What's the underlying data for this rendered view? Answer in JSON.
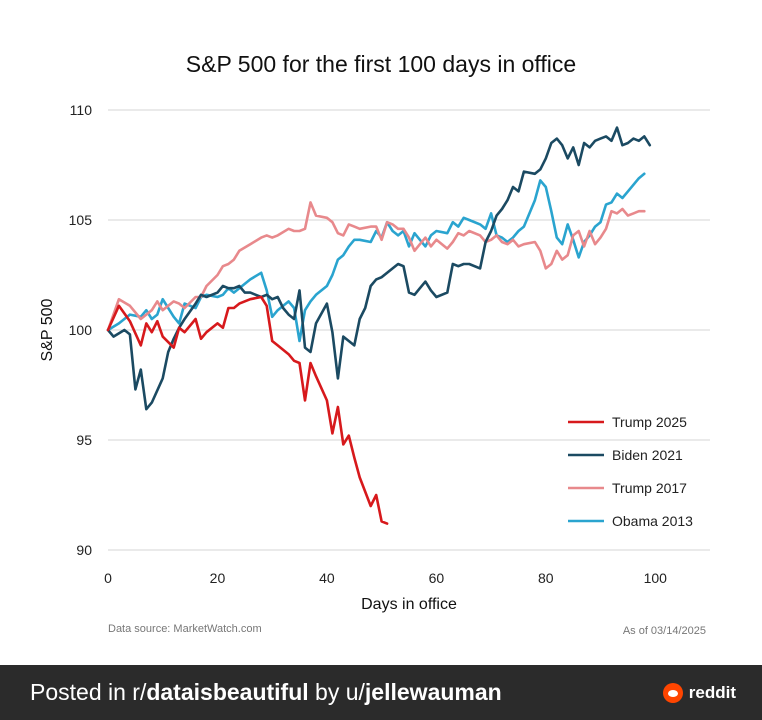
{
  "chart_data": {
    "type": "line",
    "title": "S&P 500 for the first 100 days in office",
    "xlabel": "Days in office",
    "ylabel": "S&P 500",
    "xlim": [
      0,
      110
    ],
    "ylim": [
      90,
      110
    ],
    "xticks": [
      0,
      20,
      40,
      60,
      80,
      100
    ],
    "yticks": [
      90,
      95,
      100,
      105,
      110
    ],
    "grid": "horizontal",
    "legend_position": "bottom-right",
    "series": [
      {
        "name": "Trump 2025",
        "color": "#d7191c",
        "x": [
          0,
          2,
          4,
          6,
          7,
          8,
          9,
          10,
          12,
          13,
          14,
          16,
          17,
          18,
          20,
          21,
          22,
          23,
          24,
          26,
          28,
          29,
          30,
          31,
          33,
          34,
          35,
          36,
          37,
          38,
          40,
          41,
          42,
          43,
          44,
          45,
          46,
          48,
          49,
          50,
          51
        ],
        "y": [
          100,
          101.1,
          100.4,
          99.3,
          100.3,
          99.9,
          100.4,
          99.7,
          99.2,
          100.1,
          99.9,
          100.5,
          99.6,
          99.9,
          100.3,
          100.1,
          101.0,
          101.0,
          101.2,
          101.4,
          101.5,
          101.1,
          99.5,
          99.3,
          98.9,
          98.6,
          98.5,
          96.8,
          98.5,
          97.9,
          96.8,
          95.3,
          96.5,
          94.8,
          95.2,
          94.2,
          93.3,
          92.0,
          92.5,
          91.3,
          91.2
        ]
      },
      {
        "name": "Biden 2021",
        "color": "#1b4a62",
        "x": [
          0,
          1,
          3,
          4,
          5,
          6,
          7,
          8,
          10,
          11,
          12,
          13,
          14,
          16,
          17,
          18,
          20,
          21,
          22,
          23,
          24,
          25,
          26,
          28,
          29,
          30,
          31,
          32,
          33,
          34,
          35,
          36,
          37,
          38,
          40,
          41,
          42,
          43,
          45,
          46,
          47,
          48,
          49,
          50,
          52,
          53,
          54,
          55,
          56,
          57,
          58,
          59,
          60,
          62,
          63,
          64,
          65,
          66,
          68,
          69,
          70,
          71,
          72,
          73,
          74,
          75,
          76,
          78,
          79,
          80,
          81,
          82,
          83,
          84,
          85,
          86,
          87,
          88,
          89,
          90,
          91,
          92,
          93,
          94,
          95,
          96,
          97,
          98,
          99
        ],
        "y": [
          100,
          99.7,
          100.0,
          99.8,
          97.3,
          98.2,
          96.4,
          96.7,
          97.8,
          99.0,
          99.6,
          100.1,
          100.5,
          101.2,
          101.6,
          101.5,
          101.7,
          102.0,
          101.9,
          101.9,
          102.0,
          101.7,
          101.7,
          101.5,
          101.6,
          101.4,
          101.5,
          101.0,
          100.7,
          100.5,
          101.8,
          99.2,
          99.0,
          100.3,
          101.2,
          99.9,
          97.8,
          99.7,
          99.3,
          100.5,
          101.0,
          102.0,
          102.3,
          102.4,
          102.8,
          103.0,
          102.9,
          101.7,
          101.6,
          101.9,
          102.2,
          101.8,
          101.5,
          101.7,
          103.0,
          102.9,
          103.0,
          103.0,
          102.8,
          104.0,
          104.5,
          105.2,
          105.5,
          105.9,
          106.5,
          106.3,
          107.2,
          107.1,
          107.3,
          107.8,
          108.5,
          108.7,
          108.4,
          107.8,
          108.3,
          107.5,
          108.5,
          108.3,
          108.6,
          108.7,
          108.8,
          108.6,
          109.2,
          108.4,
          108.5,
          108.7,
          108.6,
          108.8,
          108.4
        ]
      },
      {
        "name": "Trump 2017",
        "color": "#e8898c",
        "x": [
          0,
          2,
          4,
          6,
          7,
          8,
          9,
          10,
          12,
          13,
          14,
          16,
          17,
          18,
          20,
          21,
          22,
          23,
          24,
          26,
          28,
          29,
          30,
          31,
          33,
          34,
          35,
          36,
          37,
          38,
          40,
          41,
          42,
          43,
          44,
          45,
          46,
          48,
          49,
          50,
          51,
          52,
          53,
          54,
          55,
          56,
          57,
          58,
          59,
          60,
          62,
          63,
          64,
          65,
          66,
          68,
          69,
          70,
          71,
          72,
          73,
          74,
          75,
          76,
          78,
          79,
          80,
          81,
          82,
          83,
          84,
          85,
          86,
          87,
          88,
          89,
          90,
          91,
          92,
          93,
          94,
          95,
          96,
          97,
          98
        ],
        "y": [
          100,
          101.4,
          101.1,
          100.5,
          100.7,
          100.9,
          101.3,
          100.9,
          101.3,
          101.2,
          101.0,
          101.5,
          101.5,
          102.0,
          102.5,
          102.9,
          103.0,
          103.2,
          103.6,
          103.9,
          104.2,
          104.3,
          104.2,
          104.3,
          104.6,
          104.5,
          104.5,
          104.6,
          105.8,
          105.2,
          105.1,
          104.9,
          104.4,
          104.3,
          104.8,
          104.7,
          104.6,
          104.7,
          104.7,
          104.1,
          104.9,
          104.8,
          104.6,
          104.6,
          104.2,
          103.6,
          103.9,
          104.2,
          103.8,
          104.1,
          103.7,
          104.0,
          104.4,
          104.3,
          104.5,
          104.3,
          104.0,
          104.1,
          104.3,
          104.0,
          103.9,
          104.1,
          103.8,
          103.9,
          104.0,
          103.6,
          102.8,
          103.0,
          103.6,
          103.2,
          103.4,
          104.3,
          104.5,
          103.8,
          104.5,
          103.9,
          104.2,
          104.6,
          105.4,
          105.3,
          105.5,
          105.2,
          105.3,
          105.4,
          105.4
        ]
      },
      {
        "name": "Obama 2013",
        "color": "#2aa4cf",
        "x": [
          0,
          2,
          4,
          6,
          7,
          8,
          9,
          10,
          12,
          13,
          14,
          16,
          17,
          18,
          20,
          21,
          22,
          23,
          24,
          26,
          28,
          29,
          30,
          31,
          33,
          34,
          35,
          36,
          37,
          38,
          40,
          41,
          42,
          43,
          44,
          45,
          46,
          48,
          49,
          50,
          51,
          52,
          53,
          54,
          55,
          56,
          57,
          58,
          59,
          60,
          62,
          63,
          64,
          65,
          66,
          68,
          69,
          70,
          71,
          72,
          73,
          74,
          75,
          76,
          78,
          79,
          80,
          81,
          82,
          83,
          84,
          85,
          86,
          87,
          88,
          89,
          90,
          91,
          92,
          93,
          94,
          95,
          96,
          97,
          98
        ],
        "y": [
          100,
          100.3,
          100.7,
          100.6,
          100.9,
          100.5,
          100.7,
          101.4,
          100.6,
          100.3,
          101.2,
          101.0,
          101.5,
          101.6,
          101.5,
          101.6,
          101.9,
          101.7,
          101.9,
          102.3,
          102.6,
          101.8,
          100.6,
          100.9,
          101.3,
          101.0,
          99.5,
          100.9,
          101.3,
          101.6,
          102.0,
          102.5,
          103.2,
          103.4,
          103.8,
          104.1,
          104.1,
          104.0,
          104.5,
          104.2,
          104.9,
          104.5,
          104.3,
          104.5,
          103.8,
          104.4,
          104.1,
          103.8,
          104.3,
          104.5,
          104.4,
          104.9,
          104.7,
          105.1,
          105.0,
          104.8,
          104.6,
          105.3,
          104.3,
          104.2,
          104.0,
          104.2,
          104.5,
          104.7,
          105.9,
          106.8,
          106.5,
          105.4,
          104.2,
          103.9,
          104.8,
          104.1,
          103.3,
          104.0,
          104.3,
          104.7,
          104.9,
          105.7,
          105.8,
          106.2,
          106.0,
          106.3,
          106.6,
          106.9,
          107.1
        ]
      }
    ],
    "source": "Data source: MarketWatch.com",
    "as_of": "As of 03/14/2025"
  },
  "footer": {
    "prefix": "Posted in r/",
    "subreddit": "dataisbeautiful",
    "middle": " by u/",
    "user": "jellewauman",
    "brand": "reddit"
  }
}
